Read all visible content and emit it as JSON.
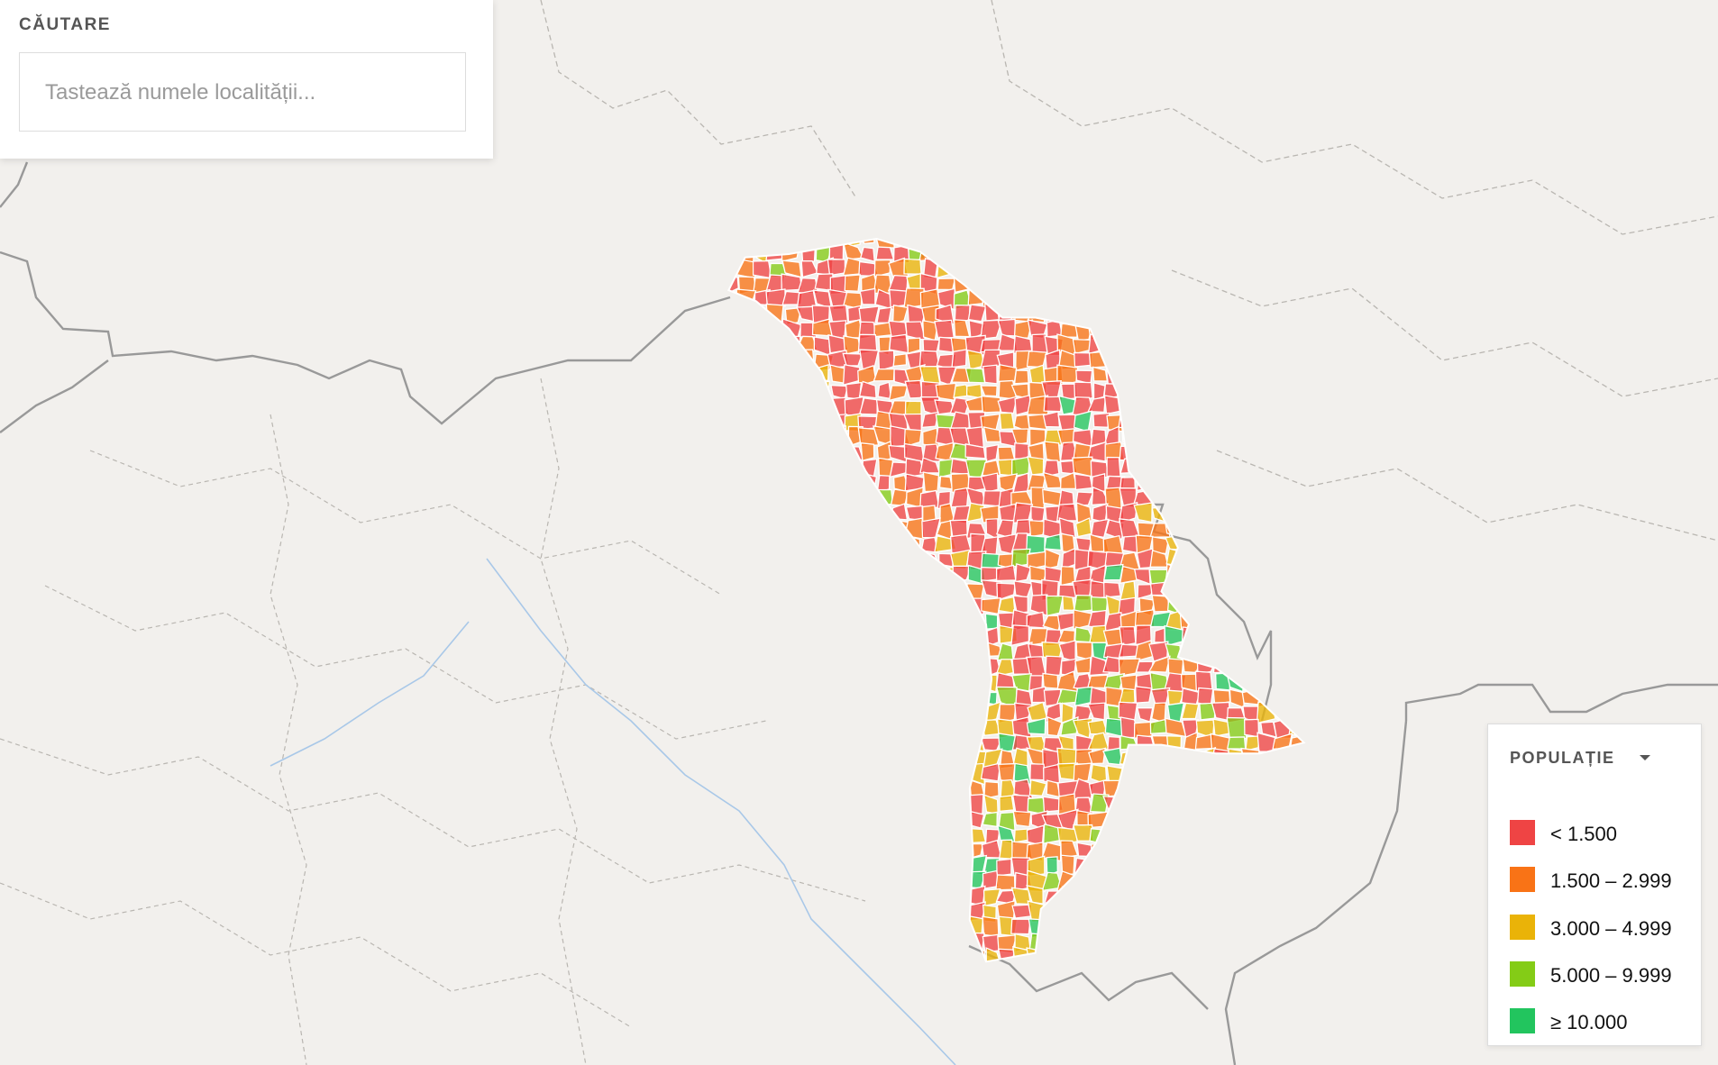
{
  "search": {
    "label": "CĂUTARE",
    "placeholder": "Tastează numele localității..."
  },
  "legend": {
    "title": "POPULAȚIE",
    "items": [
      {
        "label": "< 1.500",
        "color": "#ef4444"
      },
      {
        "label": "1.500 – 2.999",
        "color": "#f97316"
      },
      {
        "label": "3.000 – 4.999",
        "color": "#eab308"
      },
      {
        "label": "5.000 – 9.999",
        "color": "#84cc16"
      },
      {
        "label": "≥ 10.000",
        "color": "#22c55e"
      }
    ]
  }
}
